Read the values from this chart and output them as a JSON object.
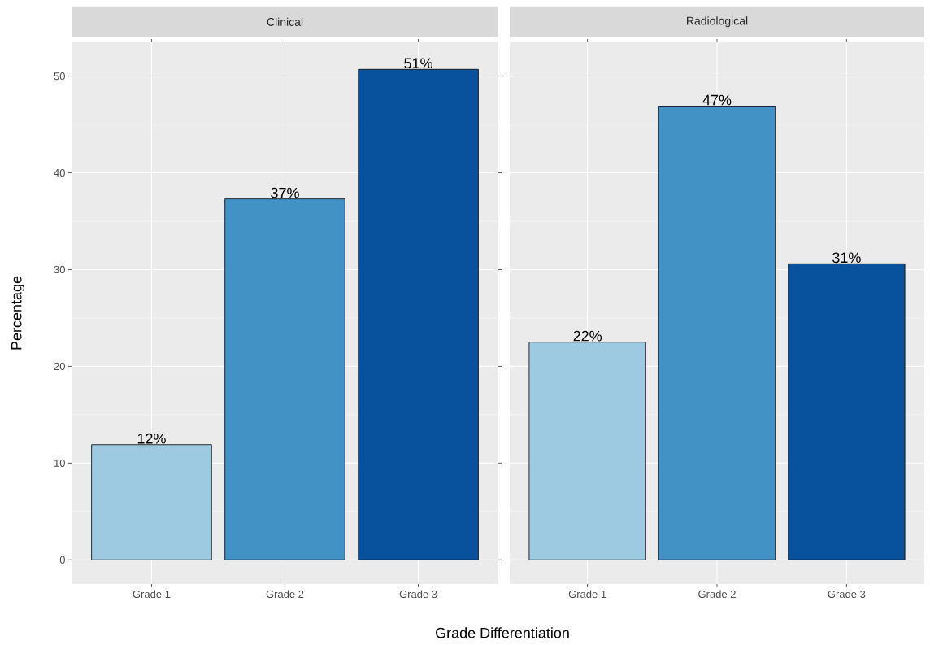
{
  "chart_data": [
    {
      "type": "bar",
      "title": "Clinical",
      "ylabel": "Percentage",
      "xlabel": "Grade Differentiation",
      "categories": [
        "Grade 1",
        "Grade 2",
        "Grade 3"
      ],
      "values": [
        11.9,
        37.3,
        50.7
      ],
      "colors": [
        "#9ecae1",
        "#4292c6",
        "#08519c"
      ],
      "value_labels": [
        "12%",
        "37%",
        "51%"
      ],
      "ylim": [
        -2.5,
        53.5
      ],
      "yticks": [
        0,
        10,
        20,
        30,
        40,
        50
      ],
      "grid": true
    },
    {
      "type": "bar",
      "title": "Radiological",
      "categories": [
        "Grade 1",
        "Grade 2",
        "Grade 3"
      ],
      "values": [
        22.5,
        46.9,
        30.6
      ],
      "colors": [
        "#9ecae1",
        "#4292c6",
        "#08519c"
      ],
      "value_labels": [
        "22%",
        "47%",
        "31%"
      ],
      "ylim": [
        -2.5,
        53.5
      ],
      "yticks": [
        0,
        10,
        20,
        30,
        40,
        50
      ],
      "grid": true,
      "tick_labels": "x"
    }
  ]
}
